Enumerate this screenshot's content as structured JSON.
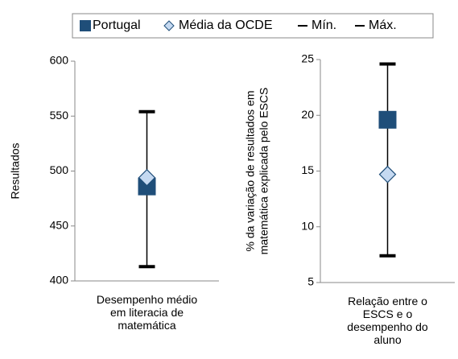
{
  "chart_data": [
    {
      "type": "range",
      "ylabel": [
        "Resultados"
      ],
      "categories": [
        "Desempenho médio em literacia de matemática"
      ],
      "ylim": [
        400,
        600
      ],
      "yticks": [
        400,
        450,
        500,
        550,
        600
      ],
      "series": [
        {
          "name": "Portugal",
          "color": "#1f4e79",
          "values": [
            486
          ]
        },
        {
          "name": "Média da OCDE",
          "color": "#c5d9f1",
          "values": [
            494
          ]
        },
        {
          "name": "Mín.",
          "color": "#000000",
          "values": [
            413
          ]
        },
        {
          "name": "Máx.",
          "color": "#000000",
          "values": [
            554
          ]
        }
      ]
    },
    {
      "type": "range",
      "ylabel": [
        "% da variação de resultados em",
        "matemática explicada pelo ESCS"
      ],
      "categories": [
        "Relação entre o ESCS e o desempenho do aluno"
      ],
      "ylim": [
        5,
        25
      ],
      "yticks": [
        5,
        10,
        15,
        20,
        25
      ],
      "series": [
        {
          "color": "#1f4e79",
          "values": [
            19.6
          ]
        },
        {
          "color": "#c5d9f1",
          "values": [
            14.7
          ]
        },
        {
          "color": "#000000",
          "values": [
            7.4
          ]
        },
        {
          "color": "#000000",
          "values": [
            24.6
          ]
        }
      ]
    }
  ]
}
